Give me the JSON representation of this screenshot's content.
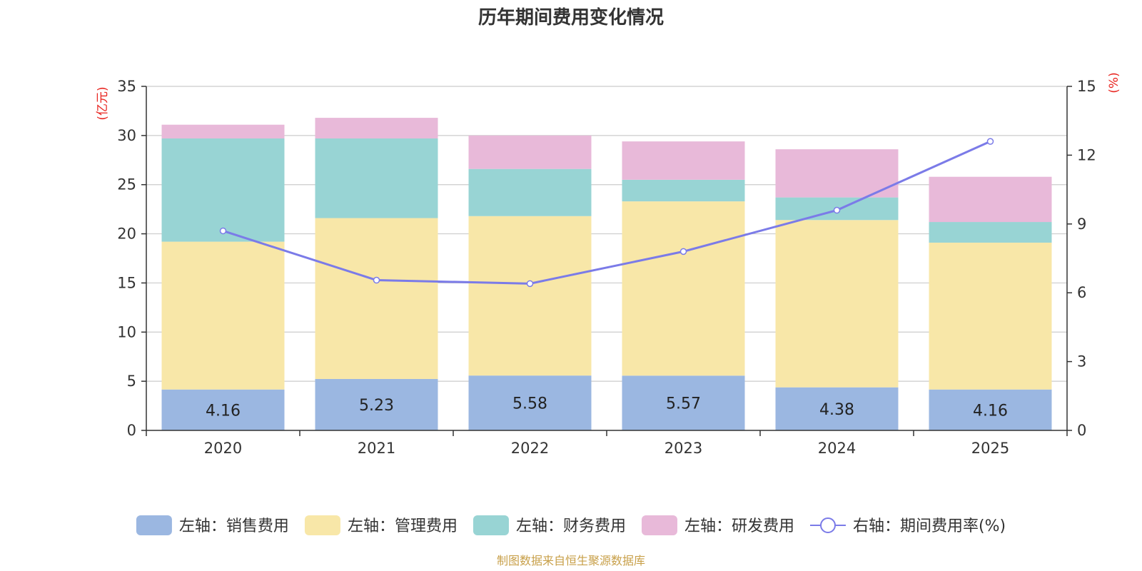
{
  "chart_data": {
    "type": "bar",
    "title": "历年期间费用变化情况",
    "categories": [
      "2020",
      "2021",
      "2022",
      "2023",
      "2024",
      "2025"
    ],
    "left_axis": {
      "unit_label": "(亿元)",
      "ylim": [
        0,
        35
      ],
      "ticks": [
        0,
        5,
        10,
        15,
        20,
        25,
        30,
        35
      ]
    },
    "right_axis": {
      "unit_label": "(%)",
      "ylim": [
        0,
        15
      ],
      "ticks": [
        0,
        3,
        6,
        9,
        12,
        15
      ]
    },
    "series": [
      {
        "name": "左轴：销售费用",
        "axis": "left",
        "color": "#9bb7e1",
        "values": [
          4.16,
          5.23,
          5.58,
          5.57,
          4.38,
          4.16
        ],
        "show_labels": true
      },
      {
        "name": "左轴：管理费用",
        "axis": "left",
        "color": "#f8e7a8",
        "values": [
          15.04,
          16.37,
          16.22,
          17.73,
          17.02,
          14.94
        ],
        "show_labels": false
      },
      {
        "name": "左轴：财务费用",
        "axis": "left",
        "color": "#98d4d4",
        "values": [
          10.5,
          8.1,
          4.8,
          2.2,
          2.3,
          2.1
        ],
        "show_labels": false
      },
      {
        "name": "左轴：研发费用",
        "axis": "left",
        "color": "#e8b9d9",
        "values": [
          1.4,
          2.1,
          3.4,
          3.9,
          4.9,
          4.6
        ],
        "show_labels": false
      },
      {
        "name": "右轴：期间费用率(%)",
        "axis": "right",
        "type": "line",
        "color": "#7b7be8",
        "values": [
          8.7,
          6.55,
          6.4,
          7.8,
          9.6,
          12.6
        ]
      }
    ],
    "legend_position": "bottom-center",
    "grid": true
  },
  "footer": {
    "source": "制图数据来自恒生聚源数据库"
  }
}
